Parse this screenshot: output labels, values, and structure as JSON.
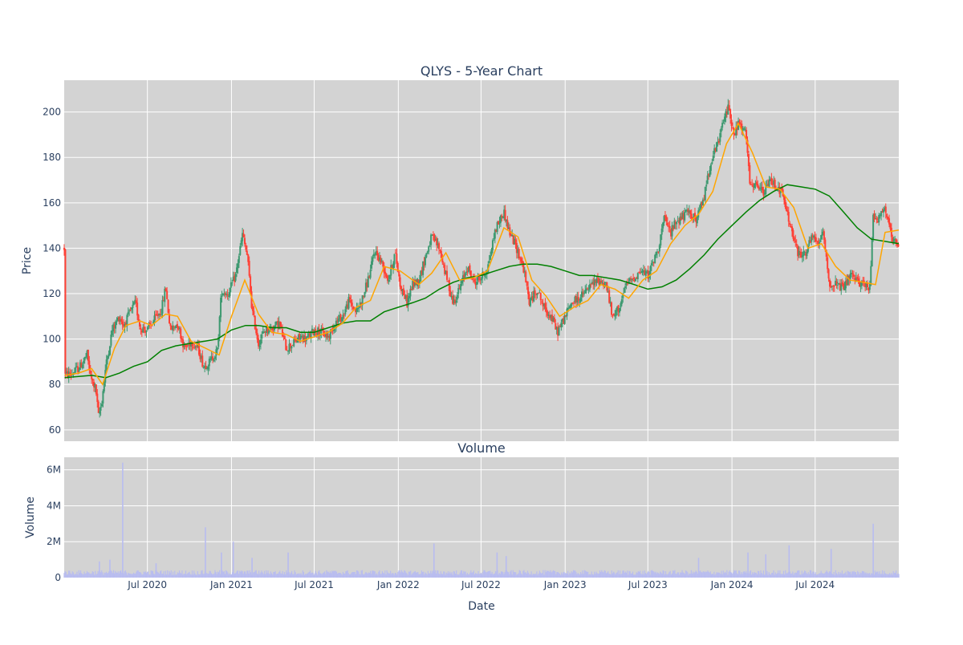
{
  "chart_data": [
    {
      "type": "candlestick",
      "title": "QLYS - 5-Year Chart",
      "ylabel": "Price",
      "xlabel": "",
      "x_range": [
        "2020-01-01",
        "2024-12-31"
      ],
      "ylim": [
        55,
        214
      ],
      "y_ticks": [
        60,
        80,
        100,
        120,
        140,
        160,
        180,
        200
      ],
      "grid": true,
      "legend": "none",
      "colors": {
        "increasing": "#3d9970",
        "decreasing": "#ff4136",
        "ma_short": "#ffa500",
        "ma_long": "#008000",
        "plot_bg": "#d3d3d3",
        "grid": "#ffffff"
      },
      "price_path": [
        [
          "2020-01-02",
          84
        ],
        [
          "2020-01-20",
          85
        ],
        [
          "2020-02-05",
          88
        ],
        [
          "2020-02-20",
          93
        ],
        [
          "2020-02-28",
          83
        ],
        [
          "2020-03-10",
          78
        ],
        [
          "2020-03-16",
          66
        ],
        [
          "2020-03-23",
          72
        ],
        [
          "2020-04-01",
          88
        ],
        [
          "2020-04-15",
          104
        ],
        [
          "2020-05-01",
          110
        ],
        [
          "2020-05-10",
          106
        ],
        [
          "2020-05-25",
          112
        ],
        [
          "2020-06-05",
          116
        ],
        [
          "2020-06-15",
          105
        ],
        [
          "2020-07-01",
          104
        ],
        [
          "2020-07-15",
          108
        ],
        [
          "2020-08-01",
          113
        ],
        [
          "2020-08-10",
          123
        ],
        [
          "2020-08-20",
          104
        ],
        [
          "2020-09-05",
          107
        ],
        [
          "2020-09-20",
          96
        ],
        [
          "2020-10-05",
          99
        ],
        [
          "2020-10-20",
          96
        ],
        [
          "2020-11-01",
          88
        ],
        [
          "2020-11-15",
          90
        ],
        [
          "2020-12-01",
          95
        ],
        [
          "2020-12-10",
          121
        ],
        [
          "2020-12-25",
          120
        ],
        [
          "2021-01-10",
          128
        ],
        [
          "2021-01-25",
          146
        ],
        [
          "2021-02-05",
          136
        ],
        [
          "2021-02-15",
          113
        ],
        [
          "2021-03-01",
          98
        ],
        [
          "2021-03-15",
          104
        ],
        [
          "2021-04-01",
          105
        ],
        [
          "2021-04-15",
          107
        ],
        [
          "2021-05-01",
          96
        ],
        [
          "2021-05-15",
          98
        ],
        [
          "2021-06-01",
          101
        ],
        [
          "2021-06-15",
          100
        ],
        [
          "2021-07-01",
          104
        ],
        [
          "2021-07-15",
          103
        ],
        [
          "2021-08-01",
          101
        ],
        [
          "2021-08-15",
          107
        ],
        [
          "2021-09-01",
          110
        ],
        [
          "2021-09-15",
          117
        ],
        [
          "2021-10-01",
          112
        ],
        [
          "2021-10-15",
          118
        ],
        [
          "2021-11-01",
          130
        ],
        [
          "2021-11-10",
          139
        ],
        [
          "2021-11-25",
          134
        ],
        [
          "2021-12-10",
          126
        ],
        [
          "2021-12-25",
          138
        ],
        [
          "2022-01-05",
          124
        ],
        [
          "2022-01-20",
          116
        ],
        [
          "2022-02-01",
          124
        ],
        [
          "2022-02-15",
          126
        ],
        [
          "2022-03-01",
          136
        ],
        [
          "2022-03-15",
          145
        ],
        [
          "2022-04-01",
          140
        ],
        [
          "2022-04-15",
          128
        ],
        [
          "2022-05-01",
          116
        ],
        [
          "2022-05-15",
          122
        ],
        [
          "2022-06-01",
          132
        ],
        [
          "2022-06-15",
          125
        ],
        [
          "2022-07-01",
          127
        ],
        [
          "2022-07-15",
          131
        ],
        [
          "2022-08-01",
          148
        ],
        [
          "2022-08-10",
          152
        ],
        [
          "2022-08-20",
          156
        ],
        [
          "2022-09-01",
          147
        ],
        [
          "2022-09-15",
          141
        ],
        [
          "2022-10-01",
          132
        ],
        [
          "2022-10-15",
          116
        ],
        [
          "2022-11-01",
          122
        ],
        [
          "2022-11-15",
          114
        ],
        [
          "2022-12-01",
          110
        ],
        [
          "2022-12-15",
          103
        ],
        [
          "2023-01-01",
          110
        ],
        [
          "2023-01-15",
          116
        ],
        [
          "2023-02-01",
          118
        ],
        [
          "2023-02-15",
          121
        ],
        [
          "2023-03-01",
          124
        ],
        [
          "2023-03-15",
          126
        ],
        [
          "2023-04-01",
          124
        ],
        [
          "2023-04-15",
          109
        ],
        [
          "2023-05-01",
          115
        ],
        [
          "2023-05-15",
          124
        ],
        [
          "2023-06-01",
          127
        ],
        [
          "2023-06-15",
          130
        ],
        [
          "2023-07-01",
          128
        ],
        [
          "2023-07-15",
          135
        ],
        [
          "2023-07-25",
          141
        ],
        [
          "2023-08-05",
          153
        ],
        [
          "2023-08-20",
          147
        ],
        [
          "2023-09-01",
          152
        ],
        [
          "2023-09-15",
          154
        ],
        [
          "2023-10-01",
          156
        ],
        [
          "2023-10-15",
          152
        ],
        [
          "2023-11-01",
          163
        ],
        [
          "2023-11-15",
          178
        ],
        [
          "2023-12-01",
          186
        ],
        [
          "2023-12-15",
          197
        ],
        [
          "2023-12-25",
          203
        ],
        [
          "2024-01-05",
          189
        ],
        [
          "2024-01-15",
          195
        ],
        [
          "2024-02-01",
          190
        ],
        [
          "2024-02-10",
          166
        ],
        [
          "2024-02-25",
          168
        ],
        [
          "2024-03-10",
          164
        ],
        [
          "2024-03-25",
          170
        ],
        [
          "2024-04-05",
          168
        ],
        [
          "2024-04-20",
          164
        ],
        [
          "2024-05-01",
          155
        ],
        [
          "2024-05-10",
          148
        ],
        [
          "2024-05-25",
          137
        ],
        [
          "2024-06-10",
          138
        ],
        [
          "2024-06-25",
          145
        ],
        [
          "2024-07-05",
          142
        ],
        [
          "2024-07-20",
          146
        ],
        [
          "2024-08-01",
          124
        ],
        [
          "2024-08-15",
          124
        ],
        [
          "2024-09-01",
          122
        ],
        [
          "2024-09-15",
          128
        ],
        [
          "2024-10-01",
          125
        ],
        [
          "2024-10-15",
          125
        ],
        [
          "2024-10-28",
          121
        ],
        [
          "2024-11-05",
          155
        ],
        [
          "2024-11-15",
          153
        ],
        [
          "2024-12-01",
          158
        ],
        [
          "2024-12-15",
          144
        ],
        [
          "2024-12-31",
          140
        ]
      ],
      "ma_short_path": [
        [
          "2020-01-02",
          84
        ],
        [
          "2020-02-01",
          85
        ],
        [
          "2020-03-01",
          87
        ],
        [
          "2020-03-25",
          80
        ],
        [
          "2020-04-20",
          96
        ],
        [
          "2020-05-15",
          106
        ],
        [
          "2020-06-15",
          108
        ],
        [
          "2020-07-10",
          106
        ],
        [
          "2020-08-10",
          111
        ],
        [
          "2020-09-05",
          110
        ],
        [
          "2020-10-05",
          99
        ],
        [
          "2020-11-05",
          96
        ],
        [
          "2020-12-05",
          93
        ],
        [
          "2021-01-01",
          110
        ],
        [
          "2021-01-30",
          126
        ],
        [
          "2021-03-01",
          111
        ],
        [
          "2021-03-30",
          103
        ],
        [
          "2021-05-01",
          102
        ],
        [
          "2021-06-01",
          99
        ],
        [
          "2021-07-01",
          101
        ],
        [
          "2021-08-01",
          103
        ],
        [
          "2021-09-01",
          107
        ],
        [
          "2021-10-01",
          114
        ],
        [
          "2021-11-01",
          117
        ],
        [
          "2021-12-01",
          132
        ],
        [
          "2022-01-05",
          130
        ],
        [
          "2022-02-15",
          124
        ],
        [
          "2022-03-15",
          129
        ],
        [
          "2022-04-15",
          138
        ],
        [
          "2022-05-15",
          126
        ],
        [
          "2022-06-15",
          127
        ],
        [
          "2022-07-15",
          130
        ],
        [
          "2022-08-20",
          149
        ],
        [
          "2022-09-20",
          145
        ],
        [
          "2022-10-20",
          126
        ],
        [
          "2022-11-20",
          119
        ],
        [
          "2022-12-20",
          110
        ],
        [
          "2023-01-20",
          114
        ],
        [
          "2023-02-20",
          117
        ],
        [
          "2023-03-20",
          124
        ],
        [
          "2023-04-20",
          122
        ],
        [
          "2023-05-20",
          118
        ],
        [
          "2023-06-20",
          126
        ],
        [
          "2023-07-20",
          130
        ],
        [
          "2023-08-20",
          142
        ],
        [
          "2023-09-20",
          150
        ],
        [
          "2023-10-20",
          155
        ],
        [
          "2023-11-20",
          165
        ],
        [
          "2023-12-20",
          186
        ],
        [
          "2024-01-15",
          195
        ],
        [
          "2024-02-15",
          182
        ],
        [
          "2024-03-15",
          167
        ],
        [
          "2024-04-15",
          166
        ],
        [
          "2024-05-15",
          158
        ],
        [
          "2024-06-15",
          140
        ],
        [
          "2024-07-15",
          142
        ],
        [
          "2024-08-15",
          132
        ],
        [
          "2024-09-15",
          126
        ],
        [
          "2024-10-15",
          125
        ],
        [
          "2024-11-10",
          124
        ],
        [
          "2024-12-01",
          147
        ],
        [
          "2024-12-31",
          148
        ]
      ],
      "ma_long_path": [
        [
          "2020-01-02",
          83
        ],
        [
          "2020-03-01",
          84
        ],
        [
          "2020-04-01",
          83
        ],
        [
          "2020-05-01",
          85
        ],
        [
          "2020-06-01",
          88
        ],
        [
          "2020-07-01",
          90
        ],
        [
          "2020-08-01",
          95
        ],
        [
          "2020-09-01",
          97
        ],
        [
          "2020-10-01",
          98
        ],
        [
          "2020-11-01",
          99
        ],
        [
          "2020-12-01",
          100
        ],
        [
          "2021-01-01",
          104
        ],
        [
          "2021-02-01",
          106
        ],
        [
          "2021-03-01",
          106
        ],
        [
          "2021-04-01",
          105
        ],
        [
          "2021-05-01",
          105
        ],
        [
          "2021-06-01",
          103
        ],
        [
          "2021-07-01",
          103
        ],
        [
          "2021-08-01",
          105
        ],
        [
          "2021-09-01",
          107
        ],
        [
          "2021-10-01",
          108
        ],
        [
          "2021-11-01",
          108
        ],
        [
          "2021-12-01",
          112
        ],
        [
          "2022-01-01",
          114
        ],
        [
          "2022-02-01",
          116
        ],
        [
          "2022-03-01",
          118
        ],
        [
          "2022-04-01",
          122
        ],
        [
          "2022-05-01",
          125
        ],
        [
          "2022-06-01",
          127
        ],
        [
          "2022-07-01",
          128
        ],
        [
          "2022-08-01",
          130
        ],
        [
          "2022-09-01",
          132
        ],
        [
          "2022-10-01",
          133
        ],
        [
          "2022-11-01",
          133
        ],
        [
          "2022-12-01",
          132
        ],
        [
          "2023-01-01",
          130
        ],
        [
          "2023-02-01",
          128
        ],
        [
          "2023-03-01",
          128
        ],
        [
          "2023-04-01",
          127
        ],
        [
          "2023-05-01",
          126
        ],
        [
          "2023-06-01",
          124
        ],
        [
          "2023-07-01",
          122
        ],
        [
          "2023-08-01",
          123
        ],
        [
          "2023-09-01",
          126
        ],
        [
          "2023-10-01",
          131
        ],
        [
          "2023-11-01",
          137
        ],
        [
          "2023-12-01",
          144
        ],
        [
          "2024-01-01",
          150
        ],
        [
          "2024-02-01",
          156
        ],
        [
          "2024-03-01",
          161
        ],
        [
          "2024-04-01",
          165
        ],
        [
          "2024-05-01",
          168
        ],
        [
          "2024-06-01",
          167
        ],
        [
          "2024-07-01",
          166
        ],
        [
          "2024-08-01",
          163
        ],
        [
          "2024-09-01",
          156
        ],
        [
          "2024-10-01",
          149
        ],
        [
          "2024-11-01",
          144
        ],
        [
          "2024-12-01",
          143
        ],
        [
          "2024-12-31",
          142
        ]
      ]
    },
    {
      "type": "bar",
      "title": "Volume",
      "ylabel": "Volume",
      "xlabel": "Date",
      "x_range": [
        "2020-01-01",
        "2024-12-31"
      ],
      "ylim": [
        0,
        6700000
      ],
      "y_ticks": [
        0,
        2000000,
        4000000,
        6000000
      ],
      "y_tick_labels": [
        "0",
        "2M",
        "4M",
        "6M"
      ],
      "x_ticks": [
        "2020-07-01",
        "2021-01-01",
        "2021-07-01",
        "2022-01-01",
        "2022-07-01",
        "2023-01-01",
        "2023-07-01",
        "2024-01-01",
        "2024-07-01"
      ],
      "x_tick_labels": [
        "Jul 2020",
        "Jan 2021",
        "Jul 2021",
        "Jan 2022",
        "Jul 2022",
        "Jan 2023",
        "Jul 2023",
        "Jan 2024",
        "Jul 2024"
      ],
      "grid": true,
      "colors": {
        "bar": "#b8bcf0",
        "plot_bg": "#d3d3d3",
        "grid": "#ffffff"
      },
      "baseline": 300000,
      "spikes": [
        [
          "2020-03-18",
          900000
        ],
        [
          "2020-04-10",
          1000000
        ],
        [
          "2020-05-08",
          6400000
        ],
        [
          "2020-07-20",
          800000
        ],
        [
          "2020-11-05",
          2800000
        ],
        [
          "2020-12-10",
          1400000
        ],
        [
          "2021-01-05",
          2000000
        ],
        [
          "2021-02-15",
          1100000
        ],
        [
          "2021-05-05",
          1400000
        ],
        [
          "2022-03-20",
          1900000
        ],
        [
          "2022-08-05",
          1400000
        ],
        [
          "2022-08-25",
          1200000
        ],
        [
          "2023-10-20",
          1100000
        ],
        [
          "2024-02-05",
          1400000
        ],
        [
          "2024-03-15",
          1300000
        ],
        [
          "2024-05-05",
          1800000
        ],
        [
          "2024-08-05",
          1600000
        ],
        [
          "2024-11-05",
          3000000
        ]
      ]
    }
  ]
}
